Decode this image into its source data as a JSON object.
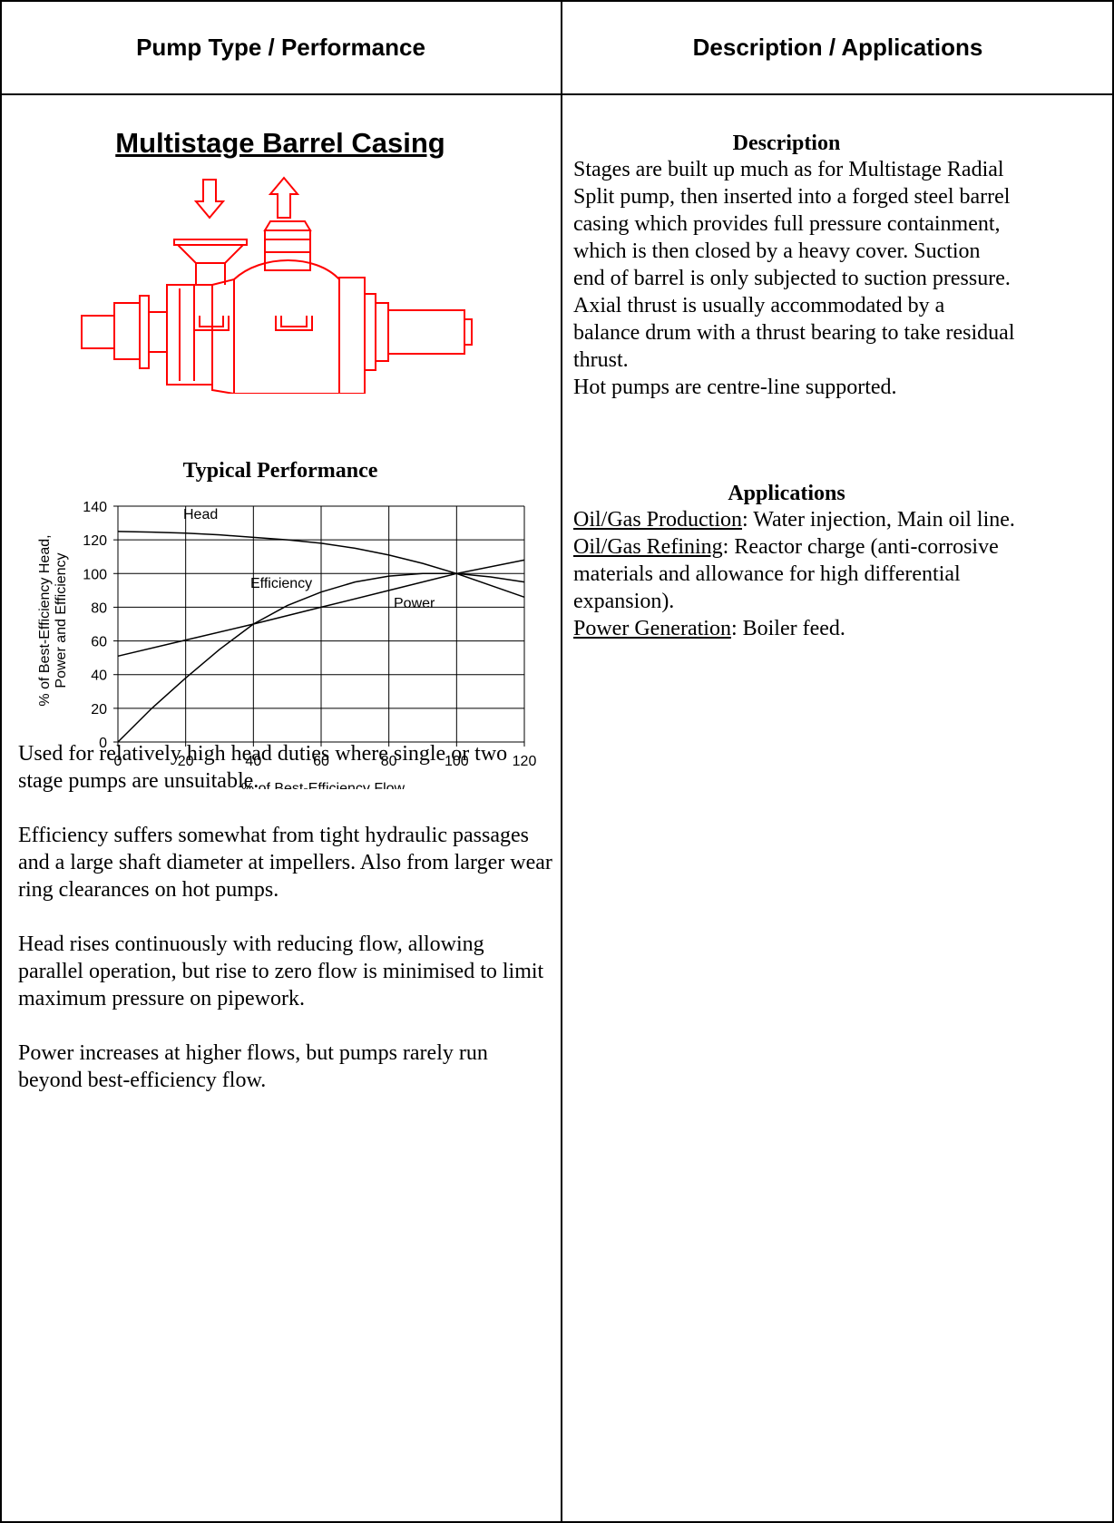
{
  "header": {
    "left": "Pump Type / Performance",
    "right": "Description / Applications"
  },
  "pump": {
    "title": "Multistage Barrel Casing",
    "performance_title": "Typical Performance",
    "drawing_color": "#ff0000"
  },
  "chart_data": {
    "type": "line",
    "xlabel": "% of Best-Efficiency Flow",
    "ylabel_line1": "% of Best-Efficiency Head,",
    "ylabel_line2": "Power and Efficiency",
    "xlim": [
      0,
      120
    ],
    "ylim": [
      0,
      140
    ],
    "x_ticks": [
      0,
      20,
      40,
      60,
      80,
      100,
      120
    ],
    "y_ticks": [
      0,
      20,
      40,
      60,
      80,
      100,
      120,
      140
    ],
    "grid": true,
    "series": [
      {
        "name": "Head",
        "x": [
          0,
          10,
          20,
          30,
          40,
          50,
          60,
          70,
          80,
          90,
          100,
          110,
          120
        ],
        "y": [
          125,
          124.6,
          124,
          123,
          121.5,
          120,
          118,
          115,
          111,
          106,
          100,
          93,
          86
        ]
      },
      {
        "name": "Efficiency",
        "x": [
          0,
          10,
          20,
          30,
          40,
          50,
          60,
          70,
          80,
          90,
          100,
          110,
          120
        ],
        "y": [
          0,
          20,
          38,
          55,
          70,
          81,
          89,
          95,
          98.5,
          100,
          100,
          98,
          95
        ]
      },
      {
        "name": "Power",
        "x": [
          0,
          20,
          40,
          60,
          80,
          100,
          120
        ],
        "y": [
          51,
          60.5,
          70,
          80,
          90,
          100,
          108
        ]
      }
    ]
  },
  "notes": [
    "Used for relatively high head duties where single or two stage pumps are unsuitable.",
    "Efficiency suffers somewhat from tight hydraulic passages and a large shaft diameter at impellers. Also from larger wear ring clearances on hot pumps.",
    "Head rises continuously with reducing flow, allowing parallel operation, but rise to zero flow is minimised to limit maximum pressure on pipework.",
    "Power increases at higher flows, but pumps rarely run beyond best-efficiency flow."
  ],
  "description": {
    "heading": "Description",
    "text": "Stages are built up much as for Multistage Radial Split pump, then inserted into a forged steel barrel casing which provides full pressure containment, which is then closed by a heavy cover. Suction end of barrel is only subjected to suction pressure. Axial thrust is usually accommodated by a balance drum with a thrust bearing to take residual thrust.",
    "text2": "Hot pumps are centre-line supported."
  },
  "applications": {
    "heading": "Applications",
    "items": [
      {
        "label": "Oil/Gas Production",
        "text": ": Water injection, Main oil line."
      },
      {
        "label": "Oil/Gas Refining",
        "text": ": Reactor charge (anti-corrosive materials and allowance for high differential expansion)."
      },
      {
        "label": "Power Generation",
        "text": ": Boiler feed."
      }
    ]
  }
}
